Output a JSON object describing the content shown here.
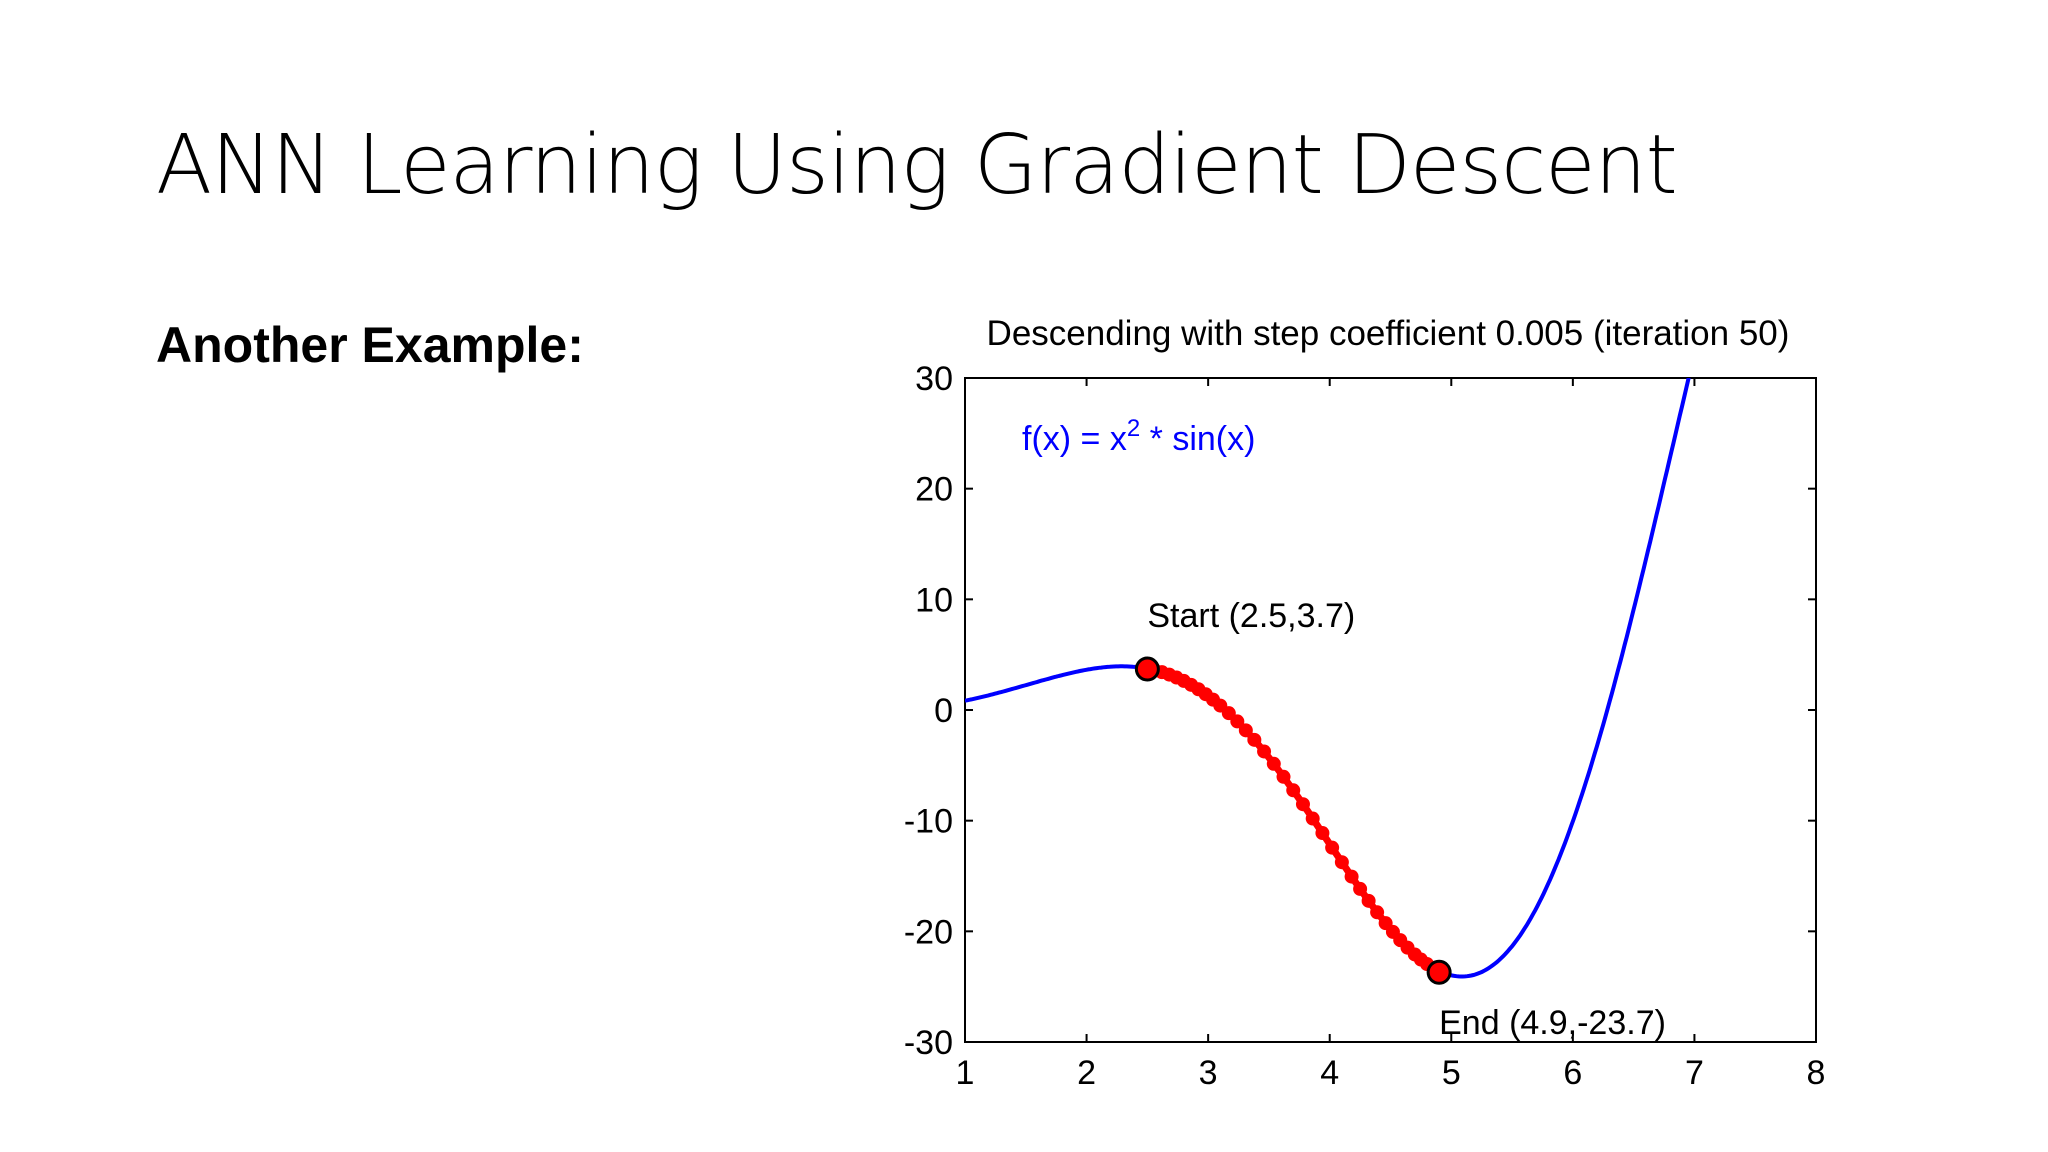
{
  "slide": {
    "title": "ANN Learning Using Gradient Descent",
    "subheading": "Another Example:"
  },
  "chart_data": {
    "type": "line",
    "title": "Descending with step coefficient 0.005 (iteration 50)",
    "xlabel": "",
    "ylabel": "",
    "xlim": [
      1,
      8
    ],
    "ylim": [
      -30,
      30
    ],
    "xticks": [
      1,
      2,
      3,
      4,
      5,
      6,
      7,
      8
    ],
    "yticks": [
      30,
      20,
      10,
      0,
      -10,
      -20,
      -30
    ],
    "grid": false,
    "function_label": {
      "prefix": "f(x) = x",
      "superscript": "2",
      "suffix": " * sin(x)"
    },
    "series": [
      {
        "function": "x^2 * sin(x)",
        "x_range": [
          1,
          8
        ],
        "color": "#0000ff"
      }
    ],
    "descent_path": {
      "color": "#ff0000",
      "x": [
        2.5,
        2.56,
        2.62,
        2.68,
        2.74,
        2.8,
        2.86,
        2.92,
        2.98,
        3.04,
        3.1,
        3.17,
        3.24,
        3.31,
        3.38,
        3.46,
        3.54,
        3.62,
        3.7,
        3.78,
        3.86,
        3.94,
        4.02,
        4.1,
        4.18,
        4.25,
        4.32,
        4.39,
        4.46,
        4.52,
        4.58,
        4.64,
        4.7,
        4.75,
        4.8,
        4.85,
        4.88,
        4.9
      ]
    },
    "annotations": [
      {
        "text": "Start (2.5,3.7)",
        "x": 2.5,
        "y": 3.7
      },
      {
        "text": "End (4.9,-23.7)",
        "x": 4.9,
        "y": -23.7
      }
    ],
    "colors": {
      "curve": "#0000ff",
      "path": "#ff0000",
      "label": "#0000ff",
      "marker_edge": "#000000"
    }
  }
}
